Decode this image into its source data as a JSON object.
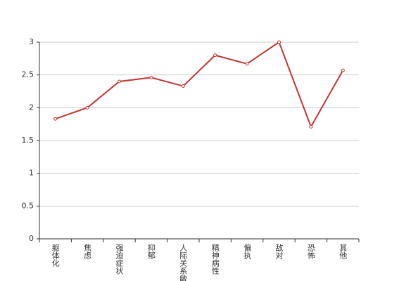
{
  "chart_data": {
    "type": "line",
    "categories": [
      "躯体化",
      "焦虑",
      "强迫症状",
      "抑郁",
      "人际关系敏感",
      "精神病性",
      "偏执",
      "敌对",
      "恐怖",
      "其他"
    ],
    "values": [
      1.83,
      2.0,
      2.4,
      2.46,
      2.33,
      2.8,
      2.67,
      3.0,
      1.71,
      2.57
    ],
    "color": "#c23531",
    "ylim": [
      0,
      3
    ],
    "yticks": [
      0,
      0.5,
      1,
      1.5,
      2,
      2.5,
      3
    ],
    "grid": true
  }
}
